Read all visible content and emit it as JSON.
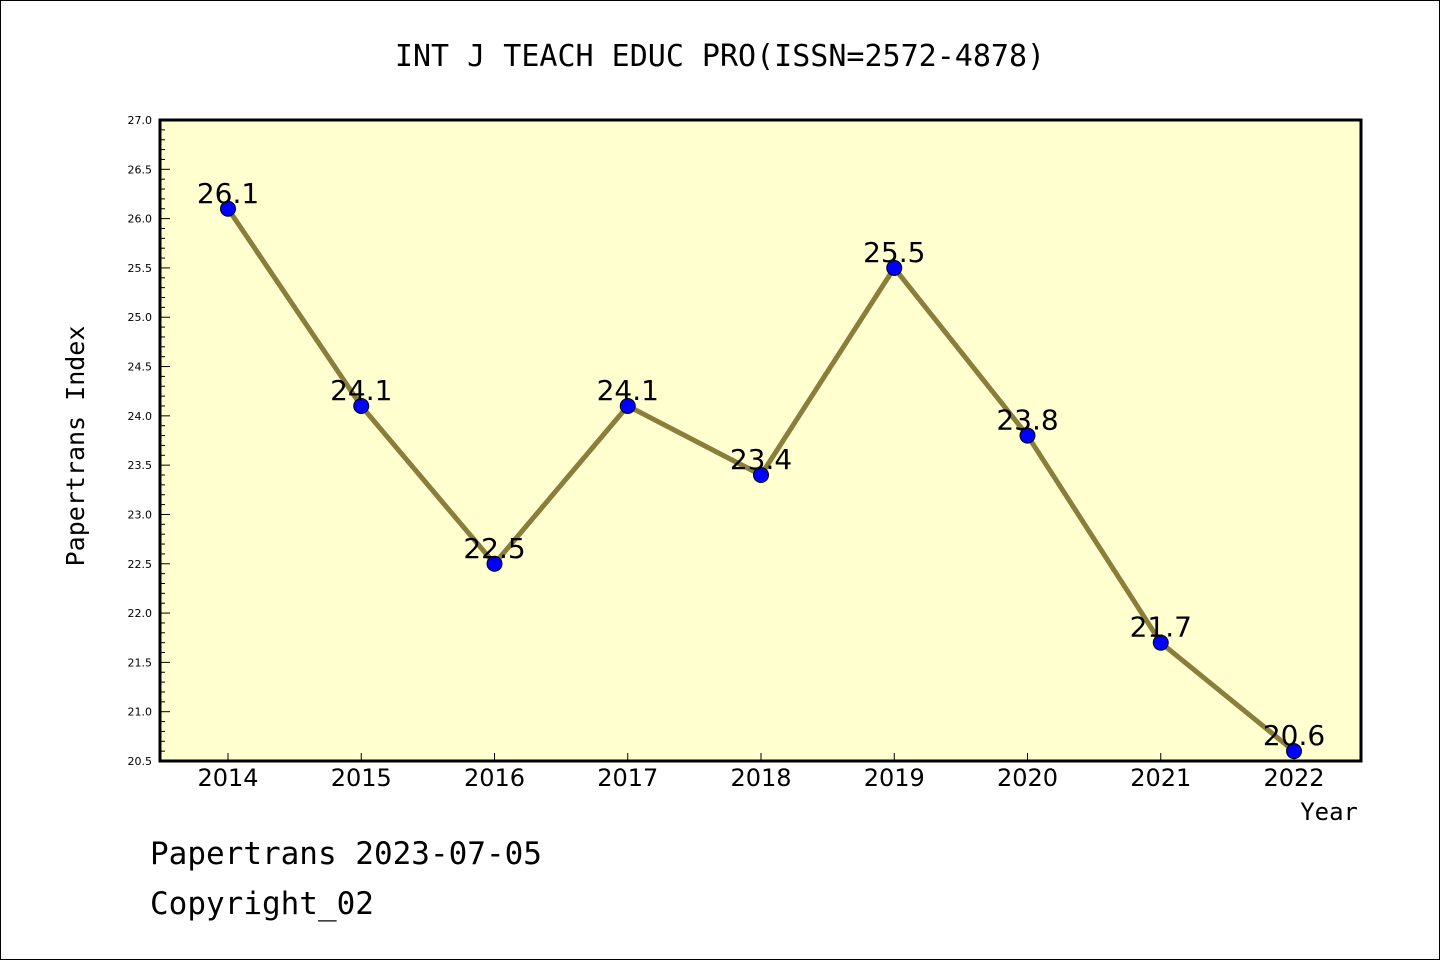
{
  "chart_data": {
    "type": "line",
    "title": "INT J TEACH EDUC PRO(ISSN=2572-4878)",
    "xlabel": "Year",
    "ylabel": "Papertrans Index",
    "categories": [
      "2014",
      "2015",
      "2016",
      "2017",
      "2018",
      "2019",
      "2020",
      "2021",
      "2022"
    ],
    "series": [
      {
        "values": [
          26.1,
          24.1,
          22.5,
          24.1,
          23.4,
          25.5,
          23.8,
          21.7,
          20.6
        ],
        "data_labels": [
          "26.1",
          "24.1",
          "22.5",
          "24.1",
          "23.4",
          "25.5",
          "23.8",
          "21.7",
          "20.6"
        ]
      }
    ],
    "ylim": [
      20.5,
      27.0
    ],
    "yticks": [
      "20.5",
      "21.0",
      "21.5",
      "22.0",
      "22.5",
      "23.0",
      "23.5",
      "24.0",
      "24.5",
      "25.0",
      "25.5",
      "26.0",
      "26.5",
      "27.0"
    ],
    "grid": false,
    "colors": {
      "plot_background": "#ffffd0",
      "line": "#8b7d3a",
      "marker": "#0000ff"
    }
  },
  "footer": {
    "line1": "Papertrans 2023-07-05",
    "line2": "Copyright_02"
  }
}
